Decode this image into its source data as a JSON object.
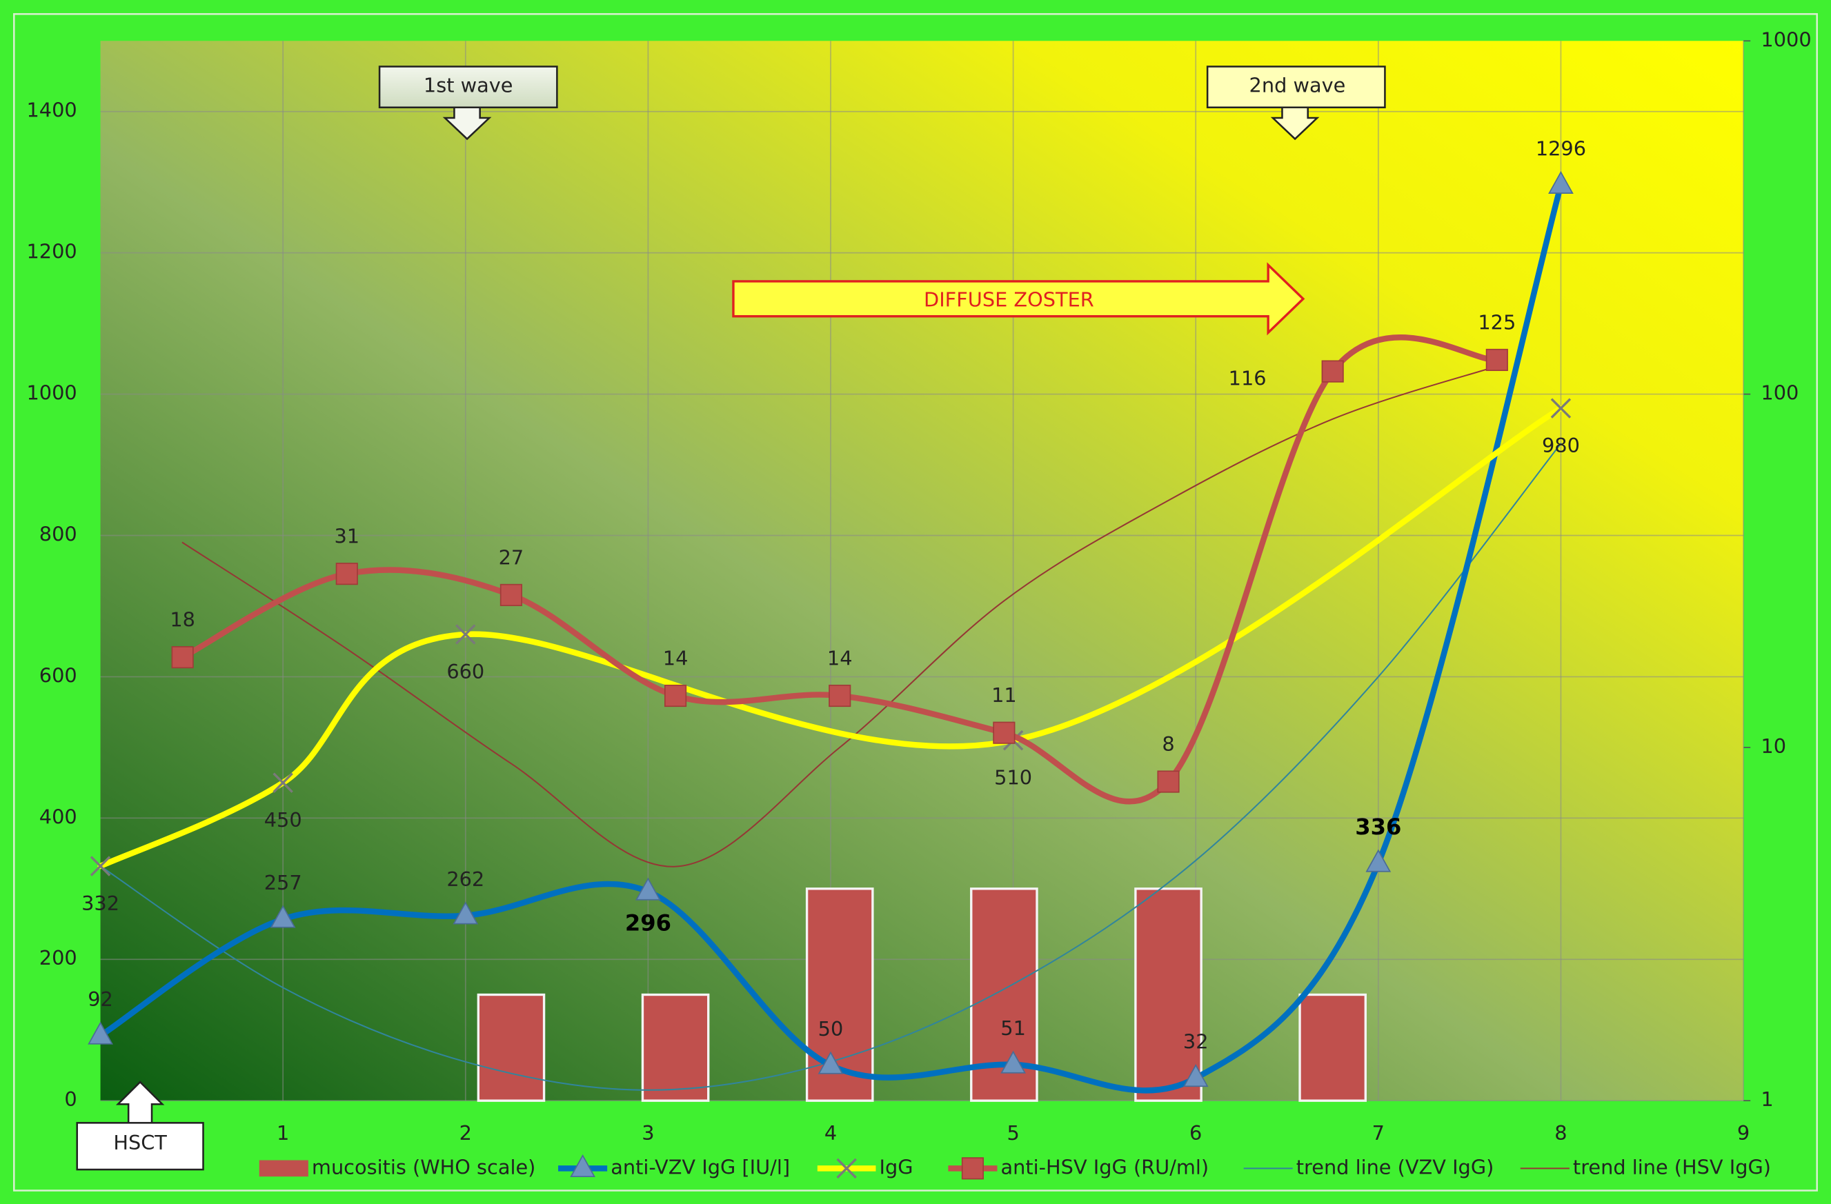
{
  "chart_data": {
    "type": "line",
    "xlim": [
      0,
      9
    ],
    "xticks": [
      1,
      2,
      3,
      4,
      5,
      6,
      7,
      8,
      9
    ],
    "ylim": [
      0,
      1500
    ],
    "yticks": [
      0,
      200,
      400,
      600,
      800,
      1000,
      1200,
      1400
    ],
    "y2lim": [
      1,
      1000
    ],
    "y2ticks": [
      1,
      10,
      100,
      1000
    ],
    "y2log": true,
    "grid": true,
    "legend": "bottom",
    "series": [
      {
        "name": "mucositis (WHO scale)",
        "type": "bar",
        "color": "#c0504d",
        "x": [
          2.25,
          3.15,
          4.05,
          4.95,
          5.85,
          6.75
        ],
        "values": [
          150,
          150,
          300,
          300,
          300,
          150
        ]
      },
      {
        "name": "anti-VZV IgG [IU/l]",
        "type": "line",
        "color": "#0070c0",
        "marker": "triangle",
        "data_labels": true,
        "x": [
          0,
          1,
          2,
          3,
          4,
          5,
          6,
          7,
          8
        ],
        "values": [
          92,
          257,
          262,
          296,
          50,
          51,
          32,
          336,
          1296
        ]
      },
      {
        "name": "IgG",
        "type": "line",
        "color": "#ffff00",
        "marker": "x",
        "data_labels": true,
        "x": [
          0,
          1,
          2,
          5,
          8
        ],
        "values": [
          332,
          450,
          660,
          510,
          980
        ]
      },
      {
        "name": "anti-HSV IgG (RU/ml)",
        "type": "line",
        "color": "#c0504d",
        "marker": "square",
        "axis": "y2",
        "data_labels": true,
        "x": [
          0.45,
          1.35,
          2.25,
          3.15,
          4.05,
          4.95,
          5.85,
          6.75,
          7.65
        ],
        "values": [
          18,
          31,
          27,
          14,
          14,
          11,
          8,
          116,
          125
        ]
      },
      {
        "name": "trend line (VZV IgG)",
        "type": "line",
        "color": "#31859c",
        "x": [
          0,
          1,
          2,
          3,
          4,
          5,
          6,
          7,
          8
        ],
        "values": [
          332,
          160,
          55,
          15,
          55,
          165,
          340,
          600,
          930
        ]
      },
      {
        "name": "trend line (HSV IgG)",
        "type": "line",
        "color": "#953735",
        "axis": "y2",
        "x": [
          0.45,
          1.35,
          2.25,
          3.15,
          4.05,
          4.95,
          5.85,
          6.75,
          7.65
        ],
        "values": [
          38,
          19,
          9,
          4.6,
          10,
          26,
          50,
          85,
          120
        ]
      }
    ],
    "annotations": [
      "1st wave",
      "2nd wave",
      "DIFFUSE ZOSTER",
      "HSCT"
    ]
  }
}
